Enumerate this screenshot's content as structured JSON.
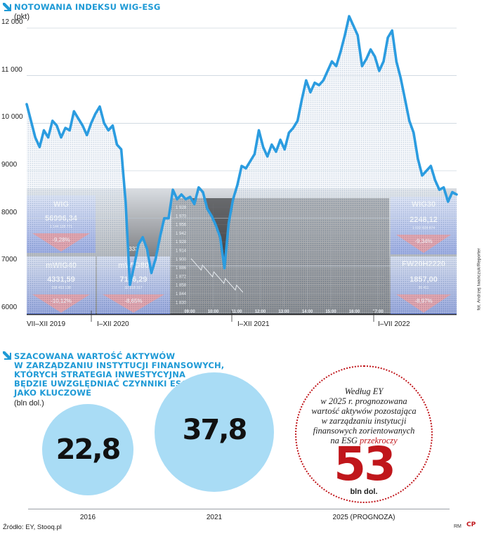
{
  "chart_data": [
    {
      "type": "line",
      "title": "NOTOWANIA INDEKSU WIG-ESG",
      "ylabel": "(pkt)",
      "ylim": [
        6000,
        12300
      ],
      "yticks": [
        "12 000",
        "11 000",
        "10 000",
        "9000",
        "8000",
        "7000",
        "6000"
      ],
      "ytick_values": [
        12000,
        11000,
        10000,
        9000,
        8000,
        7000,
        6000
      ],
      "xtick_labels": [
        "VII–XII 2019",
        "I–XII 2020",
        "I–XII 2021",
        "I–VII 2022"
      ],
      "series": [
        {
          "values": [
            10400,
            10050,
            9700,
            9500,
            9850,
            9700,
            10050,
            9950,
            9700,
            9900,
            9850,
            10250,
            10100,
            9950,
            9750,
            10000,
            10200,
            10350,
            10000,
            9850,
            9950,
            9550,
            9450,
            8350,
            6600,
            7000,
            7450,
            7600,
            7350,
            6850,
            7150,
            7600,
            8000,
            8000,
            8600,
            8400,
            8500,
            8400,
            8450,
            8300,
            8650,
            8550,
            8200,
            8050,
            7850,
            7600,
            6950,
            7900,
            8400,
            8700,
            9100,
            9050,
            9200,
            9350,
            9850,
            9500,
            9300,
            9550,
            9400,
            9650,
            9450,
            9800,
            9900,
            10050,
            10500,
            10900,
            10650,
            10850,
            10800,
            10900,
            11100,
            11300,
            11200,
            11500,
            11850,
            12250,
            12050,
            11850,
            11200,
            11350,
            11550,
            11400,
            11100,
            11300,
            11800,
            11950,
            11300,
            10950,
            10500,
            10050,
            9800,
            9250,
            8900,
            9000,
            9100,
            8800,
            8600,
            8650,
            8350,
            8550,
            8500
          ]
        }
      ],
      "background_photo": {
        "left_panels": [
          {
            "name": "WIG",
            "value": "56996,34",
            "small": "1 144 128 771",
            "change": "-9,28%"
          },
          {
            "name": "mWIG40",
            "value": "4331,59",
            "small": "158 453 138",
            "change": "-10,12%"
          },
          {
            "name": "mWIG80",
            "value": "7116,29",
            "small": "32 318 317",
            "change": "-8,65%"
          }
        ],
        "extra_value": "333",
        "intraday_ticks": [
          "1 928",
          "1 970",
          "1 956",
          "1 942",
          "1 928",
          "1 914",
          "1 900",
          "1 886",
          "1 872",
          "1 858",
          "1 844",
          "1 830"
        ],
        "intraday_times": [
          "09:00",
          "10:00",
          "11:00",
          "12:00",
          "13:00",
          "14:00",
          "15:00",
          "16:00",
          "17:00"
        ],
        "right_panels": [
          {
            "name": "WIG30",
            "value": "2248,12",
            "small": "1 032 828 874",
            "change": "-9,34%"
          },
          {
            "name": "FW20H2220",
            "value": "1857,00",
            "small": "36 411",
            "change": "-8,97%"
          }
        ],
        "credit": "fot. Andrzej Iwańczuk/Reporter"
      }
    },
    {
      "type": "bubble",
      "title": "SZACOWANA WARTOŚĆ AKTYWÓW W ZARZĄDZANIU INSTYTUCJI FINANSOWYCH, KTÓRYCH STRATEGIA INWESTYCYJNA BĘDZIE UWZGLĘDNIAĆ CZYNNIKI ESG JAKO KLUCZOWE",
      "title_lines": [
        "SZACOWANA WARTOŚĆ AKTYWÓW",
        "W ZARZĄDZANIU INSTYTUCJI FINANSOWYCH,",
        "KTÓRYCH STRATEGIA INWESTYCYJNA",
        "BĘDZIE UWZGLĘDNIAĆ CZYNNIKI ESG",
        "JAKO KLUCZOWE"
      ],
      "unit": "(bln dol.)",
      "categories": [
        "2016",
        "2021",
        "2025 (PROGNOZA)"
      ],
      "values": [
        22.8,
        37.8,
        53
      ],
      "value_labels": [
        "22,8",
        "37,8",
        "53"
      ],
      "forecast_note_lines": [
        "Według EY",
        "w 2025 r. prognozowana",
        "wartość aktywów pozostająca",
        "w zarządzaniu instytucji",
        "finansowych zorientowanych",
        "na ESG"
      ],
      "forecast_highlight": "przekroczy",
      "forecast_unit": "bln dol."
    }
  ],
  "footer": {
    "source": "Źródło: EY, Stooq.pl",
    "initials": "RM",
    "logo": "CP"
  },
  "colors": {
    "accent": "#1e9ad6",
    "line": "#2b9ce0",
    "bubble": "#a9dcf5",
    "forecast": "#c0161b"
  }
}
